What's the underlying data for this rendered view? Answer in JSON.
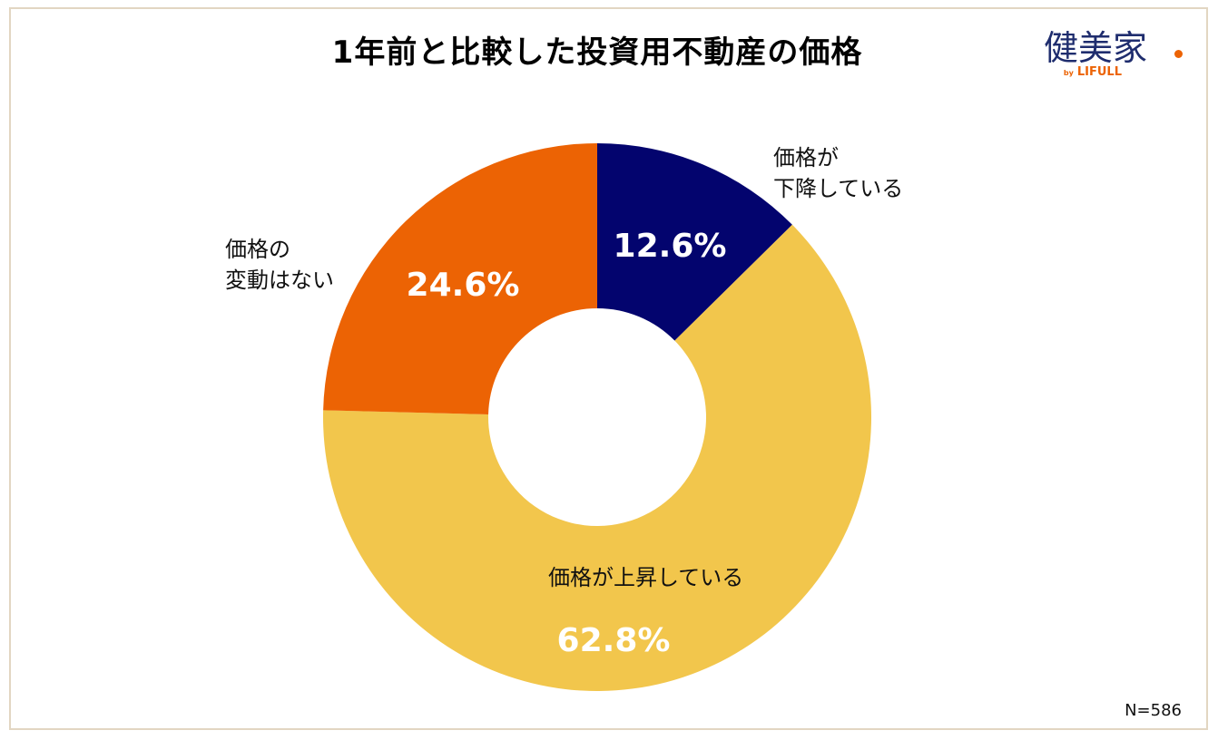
{
  "title": "1年前と比較した投資用不動産の価格",
  "logo": {
    "name": "健美家",
    "by": "by",
    "brand": "LIFULL"
  },
  "sample_size": "N=586",
  "chart_data": {
    "type": "pie",
    "donut": true,
    "title": "1年前と比較した投資用不動産の価格",
    "slices": [
      {
        "label_lines": [
          "価格が",
          "下降している"
        ],
        "value": 12.6,
        "display": "12.6%",
        "color": "#03046e"
      },
      {
        "label_lines": [
          "価格が上昇している"
        ],
        "value": 62.8,
        "display": "62.8%",
        "color": "#f2c64c"
      },
      {
        "label_lines": [
          "価格の",
          "変動はない"
        ],
        "value": 24.6,
        "display": "24.6%",
        "color": "#ec6304"
      }
    ],
    "legend": "none"
  }
}
